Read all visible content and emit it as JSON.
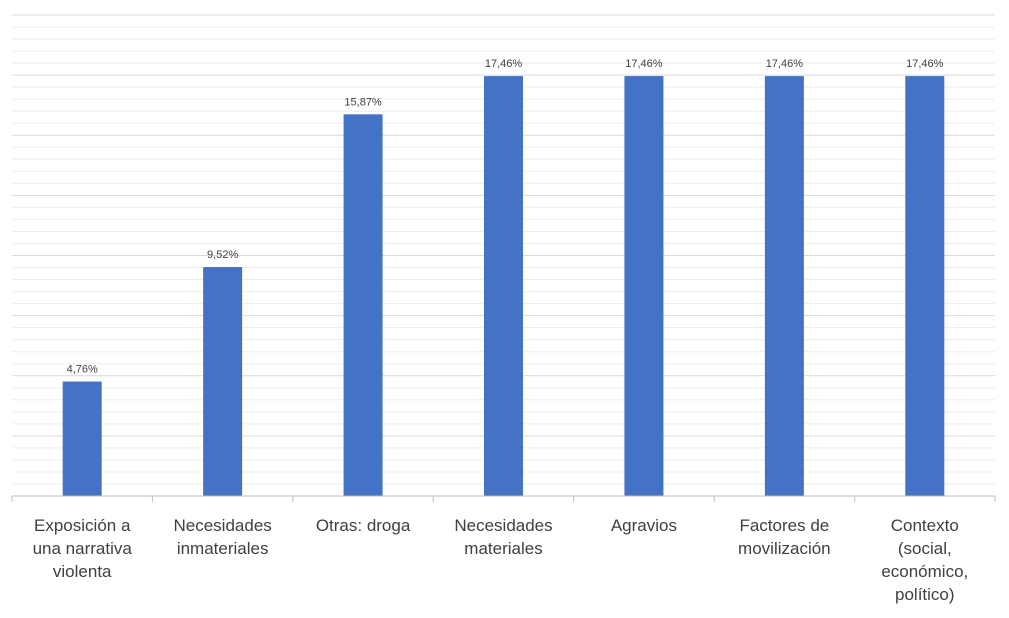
{
  "chart_data": {
    "type": "bar",
    "categories": [
      [
        "Exposición a",
        "una narrativa",
        "violenta"
      ],
      [
        "Necesidades",
        "inmateriales"
      ],
      [
        "Otras: droga"
      ],
      [
        "Necesidades",
        "materiales"
      ],
      [
        "Agravios"
      ],
      [
        "Factores de",
        "movilización"
      ],
      [
        "Contexto",
        "(social,",
        "económico,",
        "político)"
      ]
    ],
    "values": [
      4.76,
      9.52,
      15.87,
      17.46,
      17.46,
      17.46,
      17.46
    ],
    "data_labels": [
      "4,76%",
      "9,52%",
      "15,87%",
      "17,46%",
      "17,46%",
      "17,46%",
      "17,46%"
    ],
    "title": "",
    "xlabel": "",
    "ylabel": "",
    "ylim": [
      0,
      20
    ],
    "grid": true,
    "legend": "none",
    "colors": {
      "bar": "#4472C4",
      "gridline_major": "#D9D9D9",
      "gridline_minor": "#EDEDED",
      "axis": "#BFBFBF",
      "text": "#404040"
    }
  }
}
